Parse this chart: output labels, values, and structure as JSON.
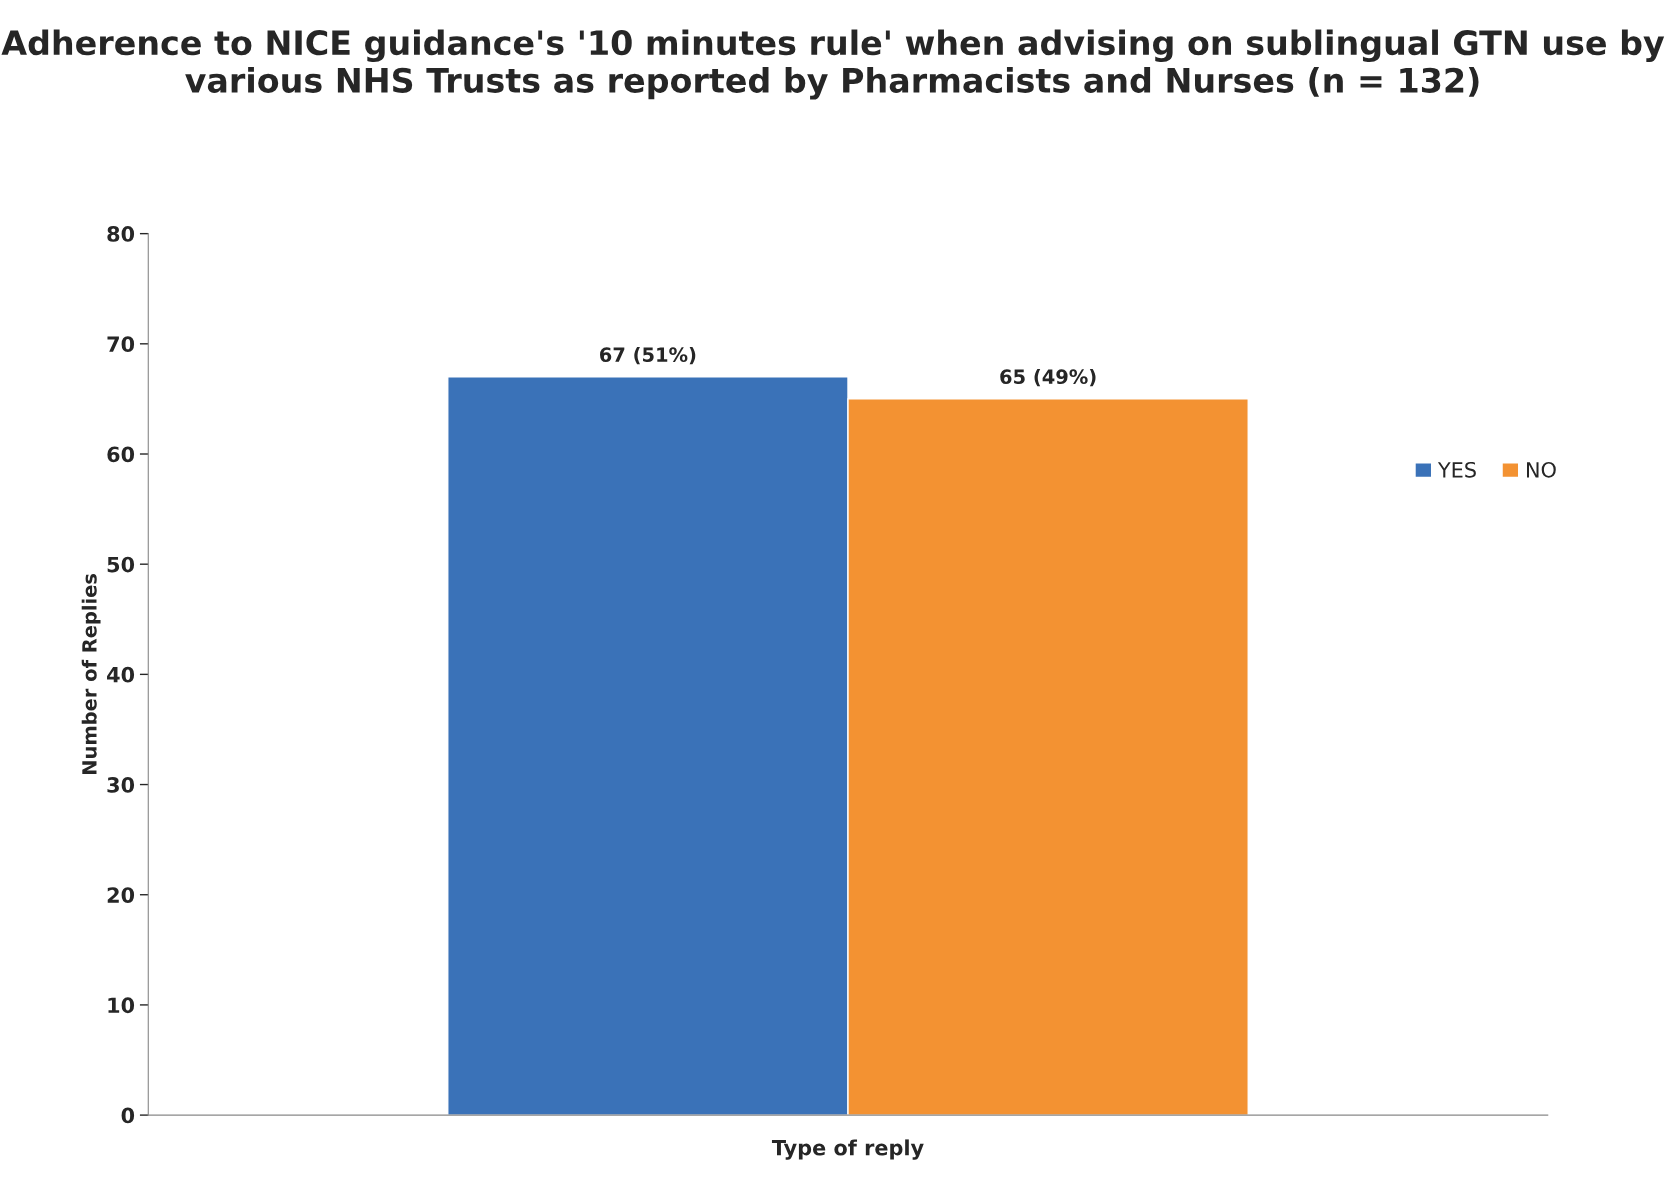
{
  "chart_data": {
    "type": "bar",
    "title": "Adherence to NICE guidance's '10 minutes rule' when advising on sublingual GTN use by various NHS Trusts as reported by Pharmacists and Nurses (n = 132)",
    "xlabel": "Type of reply",
    "ylabel": "Number of Replies",
    "categories": [
      null
    ],
    "series": [
      {
        "name": "YES",
        "color": "#3a72b8",
        "values": [
          67
        ],
        "value_labels": [
          "67 (51%)"
        ]
      },
      {
        "name": "NO",
        "color": "#f39232",
        "values": [
          65
        ],
        "value_labels": [
          "65 (49%)"
        ]
      }
    ],
    "ylim": [
      0,
      80
    ],
    "yticks": [
      0,
      10,
      20,
      30,
      40,
      50,
      60,
      70,
      80
    ],
    "grid": false,
    "legend": "right"
  }
}
